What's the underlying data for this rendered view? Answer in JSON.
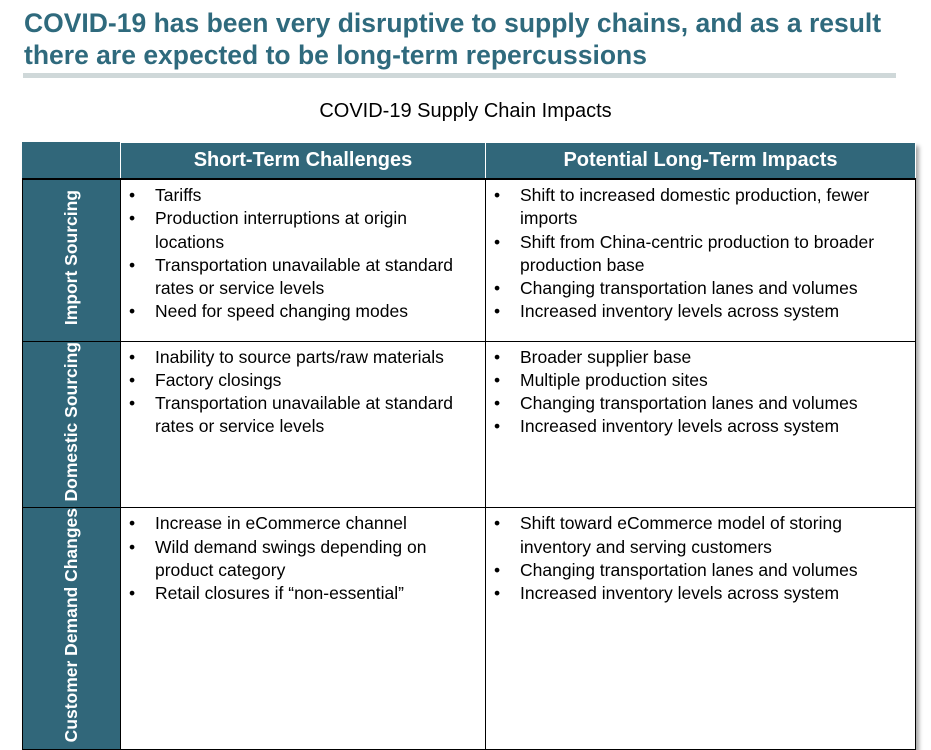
{
  "title": "COVID-19 has been very disruptive to supply chains, and as a result there are expected to be long-term repercussions",
  "subtitle": "COVID-19 Supply Chain Impacts",
  "colors": {
    "accent": "#31677a",
    "title": "#2f6a7d",
    "rule": "#cfd8d9"
  },
  "table": {
    "headers": [
      "",
      "Short-Term Challenges",
      "Potential Long-Term Impacts"
    ],
    "rows": [
      {
        "label": "Import Sourcing",
        "short_term": [
          "Tariffs",
          "Production interruptions at origin locations",
          "Transportation unavailable at standard rates or service levels",
          "Need for speed changing modes"
        ],
        "long_term": [
          "Shift to increased domestic production, fewer imports",
          "Shift from China-centric production to broader production base",
          "Changing transportation lanes and volumes",
          "Increased inventory levels across system"
        ]
      },
      {
        "label": "Domestic Sourcing",
        "short_term": [
          "Inability to source parts/raw materials",
          "Factory closings",
          "Transportation unavailable at standard rates or service levels"
        ],
        "long_term": [
          "Broader supplier base",
          "Multiple production sites",
          "Changing transportation lanes and volumes",
          "Increased inventory levels across system"
        ]
      },
      {
        "label": "Customer Demand Changes",
        "short_term": [
          "Increase in eCommerce channel",
          "Wild demand swings depending on product category",
          "Retail closures if “non-essential”"
        ],
        "long_term": [
          "Shift toward eCommerce model of storing inventory and serving customers",
          "Changing transportation lanes and volumes",
          "Increased inventory levels across system"
        ]
      }
    ]
  }
}
